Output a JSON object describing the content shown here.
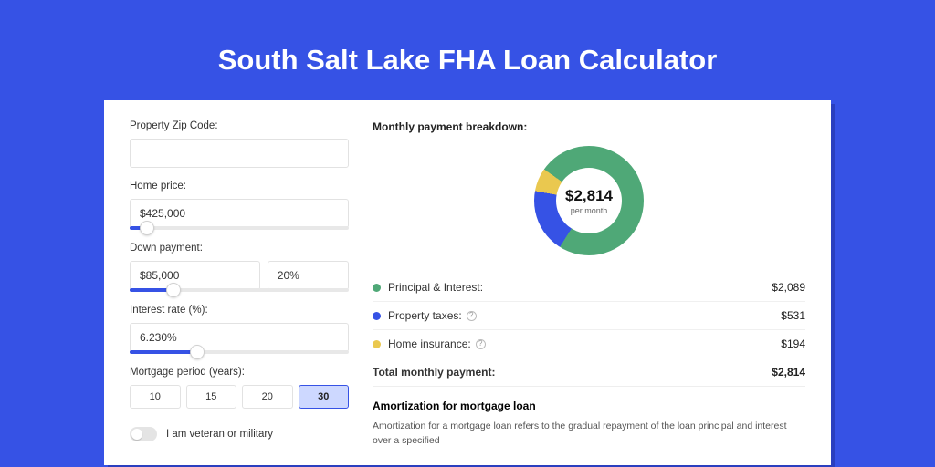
{
  "page": {
    "title": "South Salt Lake FHA Loan Calculator",
    "background_color": "#3652e5",
    "card_background": "#ffffff",
    "shadow_color": "#2a3fbf"
  },
  "form": {
    "zip": {
      "label": "Property Zip Code:",
      "value": ""
    },
    "home_price": {
      "label": "Home price:",
      "value": "$425,000",
      "slider_pct": 8
    },
    "down_payment": {
      "label": "Down payment:",
      "amount": "$85,000",
      "pct": "20%",
      "slider_pct": 20
    },
    "interest_rate": {
      "label": "Interest rate (%):",
      "value": "6.230%",
      "slider_pct": 31
    },
    "mortgage_period": {
      "label": "Mortgage period (years):",
      "options": [
        "10",
        "15",
        "20",
        "30"
      ],
      "selected_index": 3
    },
    "veteran": {
      "label": "I am veteran or military",
      "on": false
    }
  },
  "breakdown": {
    "title": "Monthly payment breakdown:",
    "donut": {
      "amount": "$2,814",
      "sub": "per month",
      "segments": [
        {
          "label": "Principal & Interest:",
          "value": "$2,089",
          "color": "#4fa877",
          "pct": 74.2,
          "has_info": false
        },
        {
          "label": "Property taxes:",
          "value": "$531",
          "color": "#3652e5",
          "pct": 18.9,
          "has_info": true
        },
        {
          "label": "Home insurance:",
          "value": "$194",
          "color": "#eac84f",
          "pct": 6.9,
          "has_info": true
        }
      ]
    },
    "total": {
      "label": "Total monthly payment:",
      "value": "$2,814"
    }
  },
  "amortization": {
    "title": "Amortization for mortgage loan",
    "text": "Amortization for a mortgage loan refers to the gradual repayment of the loan principal and interest over a specified"
  }
}
